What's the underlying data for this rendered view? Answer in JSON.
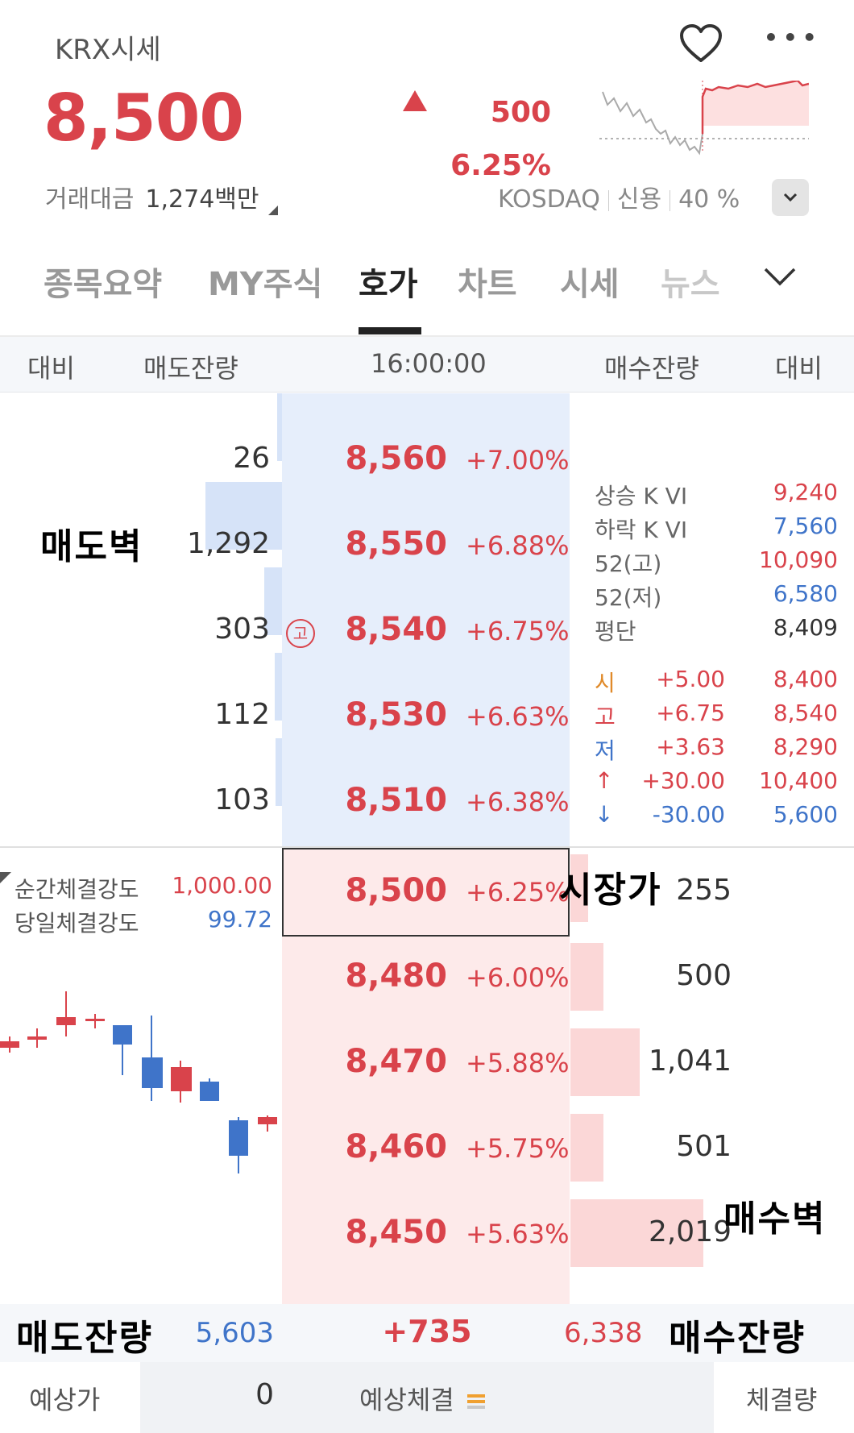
{
  "header": {
    "title": "KRX시세",
    "price": "8,500",
    "change": "500",
    "change_pct": "6.25%",
    "volume_label": "거래대금",
    "volume_value": "1,274백만",
    "market": "KOSDAQ",
    "credit_label": "신용",
    "credit_value": "40 %",
    "more_dots": "•••"
  },
  "tabs": [
    {
      "label": "종목요약"
    },
    {
      "label": "MY주식"
    },
    {
      "label": "호가"
    },
    {
      "label": "차트"
    },
    {
      "label": "시세"
    },
    {
      "label": "뉴스"
    }
  ],
  "columns": {
    "left_change": "대비",
    "ask_qty": "매도잔량",
    "time": "16:00:00",
    "bid_qty": "매수잔량",
    "right_change": "대비"
  },
  "asks": [
    {
      "qty": "26",
      "price": "8,560",
      "pct": "+7.00%",
      "bar": 0.02
    },
    {
      "qty": "1,292",
      "price": "8,550",
      "pct": "+6.88%",
      "bar": 1.0
    },
    {
      "qty": "303",
      "price": "8,540",
      "pct": "+6.75%",
      "bar": 0.23
    },
    {
      "qty": "112",
      "price": "8,530",
      "pct": "+6.63%",
      "bar": 0.09
    },
    {
      "qty": "103",
      "price": "8,510",
      "pct": "+6.38%",
      "bar": 0.08
    }
  ],
  "current": {
    "price": "8,500",
    "pct": "+6.25%",
    "qty": "255"
  },
  "bids": [
    {
      "qty": "500",
      "price": "8,480",
      "pct": "+6.00%",
      "bar": 0.25
    },
    {
      "qty": "1,041",
      "price": "8,470",
      "pct": "+5.88%",
      "bar": 0.52
    },
    {
      "qty": "501",
      "price": "8,460",
      "pct": "+5.75%",
      "bar": 0.25
    },
    {
      "qty": "2,019",
      "price": "8,450",
      "pct": "+5.63%",
      "bar": 1.0
    }
  ],
  "high_marker": "고",
  "info": {
    "vi_up_label": "상승 K VI",
    "vi_up_value": "9,240",
    "vi_down_label": "하락 K VI",
    "vi_down_value": "7,560",
    "high52_label": "52(고)",
    "high52_value": "10,090",
    "low52_label": "52(저)",
    "low52_value": "6,580",
    "avg_label": "평단",
    "avg_value": "8,409",
    "open_label": "시",
    "open_pct": "+5.00",
    "open_value": "8,400",
    "high_label": "고",
    "high_pct": "+6.75",
    "high_value": "8,540",
    "low_label": "저",
    "low_pct": "+3.63",
    "low_value": "8,290",
    "upper_label": "↑",
    "upper_pct": "+30.00",
    "upper_value": "10,400",
    "lower_label": "↓",
    "lower_pct": "-30.00",
    "lower_value": "5,600"
  },
  "strength": {
    "instant_label": "순간체결강도",
    "instant_value": "1,000.00",
    "daily_label": "당일체결강도",
    "daily_value": "99.72"
  },
  "summary": {
    "ask_total": "5,603",
    "diff": "+735",
    "bid_total": "6,338"
  },
  "footer": {
    "expected_price_label": "예상가",
    "expected_price_value": "0",
    "expected_trade_label": "예상체결",
    "trade_volume_label": "체결량"
  },
  "annotations": {
    "sell_wall": "매도벽",
    "market_price": "시장가",
    "buy_wall": "매수벽",
    "ask_remaining": "매도잔량",
    "bid_remaining": "매수잔량"
  },
  "colors": {
    "up": "#d9434b",
    "down": "#3f74c9"
  }
}
